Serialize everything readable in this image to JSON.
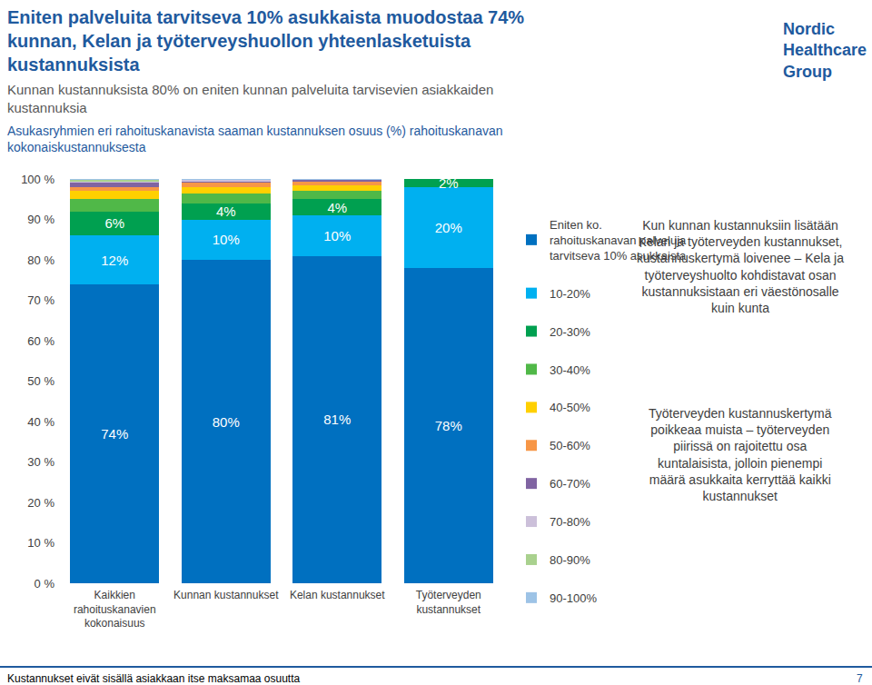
{
  "chart_data": {
    "type": "bar",
    "title": "Eniten palveluita tarvitseva 10% asukkaista muodostaa 74% kunnan, Kelan ja työterveyshuollon yhteenlasketuista kustannuksista",
    "subtitle": "Kunnan kustannuksista 80% on eniten kunnan palveluita tarvisevien asiakkaiden kustannuksia",
    "annotations": [
      "Asukasryhmien eri rahoituskanavista saaman kustannuksen osuus (%) rahoituskanavan kokonaiskustannuksesta",
      "Kun kunnan kustannuksiin lisätään Kelan ja työterveyden kustannukset, kustannuskertymä loivenee – Kela ja työterveyshuolto kohdistavat osan kustannuksistaan eri väestönosalle kuin kunta",
      "Työterveyden kustannuskertymä poikkeaa muista – työterveyden piirissä on rajoitettu osa kuntalaisista, jolloin pienempi määrä asukkaita kerryttää kaikki kustannukset",
      "Kustannukset eivät sisällä asiakkaan itse maksamaa osuutta",
      "7",
      "Nordic Healthcare Group"
    ],
    "categories": [
      "Kaikkien rahoituskanavien kokonaisuus",
      "Kunnan kustannukset",
      "Kelan kustannukset",
      "Työterveyden kustannukset"
    ],
    "stacked": true,
    "data_labels": true,
    "legend": "right",
    "grid": false,
    "ylim": [
      0,
      100
    ],
    "yticks": [
      {
        "value": 0,
        "label": "0 %"
      },
      {
        "value": 10,
        "label": "10 %"
      },
      {
        "value": 20,
        "label": "20 %"
      },
      {
        "value": 30,
        "label": "30 %"
      },
      {
        "value": 40,
        "label": "40 %"
      },
      {
        "value": 50,
        "label": "50 %"
      },
      {
        "value": 60,
        "label": "60 %"
      },
      {
        "value": 70,
        "label": "70 %"
      },
      {
        "value": 80,
        "label": "80 %"
      },
      {
        "value": 90,
        "label": "90 %"
      },
      {
        "value": 100,
        "label": "100 %"
      }
    ],
    "series": [
      {
        "name": "Eniten ko. rahoituskanavan palveluja tarvitseva 10% asukkaista",
        "color": "#0070c0",
        "values": [
          74,
          80,
          81,
          78
        ],
        "value_labels": [
          "74%",
          "80%",
          "81%",
          "78%"
        ]
      },
      {
        "name": "10-20%",
        "color": "#00b0f0",
        "values": [
          12,
          10,
          10,
          20
        ],
        "value_labels": [
          "12%",
          "10%",
          "10%",
          "20%"
        ]
      },
      {
        "name": "20-30%",
        "color": "#00a050",
        "values": [
          6,
          4,
          4,
          2
        ],
        "value_labels": [
          "6%",
          "4%",
          "4%",
          "2%"
        ]
      },
      {
        "name": "30-40%",
        "color": "#50b848",
        "values": [
          3,
          2.5,
          2,
          0
        ]
      },
      {
        "name": "40-50%",
        "color": "#ffd000",
        "values": [
          2,
          1.5,
          1.5,
          0
        ]
      },
      {
        "name": "50-60%",
        "color": "#f79646",
        "values": [
          1,
          1,
          1,
          0
        ]
      },
      {
        "name": "60-70%",
        "color": "#8064a2",
        "values": [
          1,
          0.5,
          0.3,
          0
        ]
      },
      {
        "name": "70-80%",
        "color": "#ccc0da",
        "values": [
          0.5,
          0.3,
          0.1,
          0
        ]
      },
      {
        "name": "80-90%",
        "color": "#a9d18e",
        "values": [
          0.3,
          0.1,
          0.05,
          0
        ]
      },
      {
        "name": "90-100%",
        "color": "#9dc3e6",
        "values": [
          0.2,
          0.1,
          0.05,
          0
        ]
      }
    ]
  }
}
